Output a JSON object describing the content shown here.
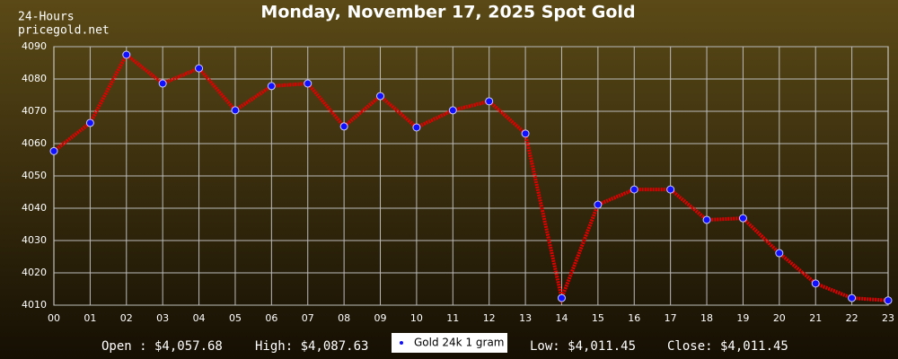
{
  "chart_data": {
    "type": "line",
    "title": "Monday, November 17, 2025 Spot Gold",
    "corner_labels": [
      "24-Hours",
      "pricegold.net"
    ],
    "categories": [
      "00",
      "01",
      "02",
      "03",
      "04",
      "05",
      "06",
      "07",
      "08",
      "09",
      "10",
      "11",
      "12",
      "13",
      "14",
      "15",
      "16",
      "17",
      "18",
      "19",
      "20",
      "21",
      "22",
      "23"
    ],
    "series": [
      {
        "name": "Gold 24k 1 gram",
        "color": "#e00000",
        "marker_color": "#1010ff",
        "values": [
          4057.68,
          4066.4,
          4087.5,
          4078.6,
          4083.3,
          4070.3,
          4077.8,
          4078.6,
          4065.3,
          4074.7,
          4065.0,
          4070.3,
          4073.1,
          4063.1,
          4012.2,
          4041.1,
          4045.8,
          4045.8,
          4036.4,
          4036.9,
          4026.1,
          4016.7,
          4012.2,
          4011.45
        ]
      }
    ],
    "ylim": [
      4010,
      4090
    ],
    "yticks": [
      4010,
      4020,
      4030,
      4040,
      4050,
      4060,
      4070,
      4080,
      4090
    ],
    "grid": true,
    "stats": [
      "Open : $4,057.68",
      "High: $4,087.63",
      "Low: $4,011.45",
      "Close: $4,011.45"
    ]
  }
}
